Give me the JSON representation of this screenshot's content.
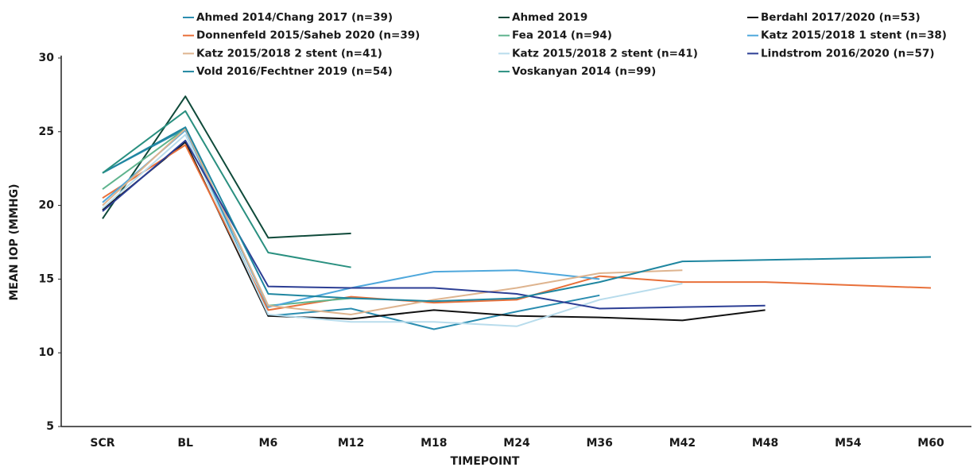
{
  "chart_data": {
    "type": "line",
    "x_label": "TIMEPOINT",
    "y_label": "MEAN IOP (MMHG)",
    "categories": [
      "SCR",
      "BL",
      "M6",
      "M12",
      "M18",
      "M24",
      "M36",
      "M42",
      "M48",
      "M54",
      "M60"
    ],
    "ylim": [
      5,
      30
    ],
    "yticks": [
      5,
      10,
      15,
      20,
      25,
      30
    ],
    "grid": false,
    "series": [
      {
        "name": "Ahmed 2014/Chang 2017 (n=39)",
        "color": "#2b8db0",
        "values": [
          22.2,
          25.2,
          12.5,
          13.0,
          11.6,
          12.8,
          13.9,
          null,
          null,
          null,
          null
        ]
      },
      {
        "name": "Ahmed 2019",
        "color": "#0f4a3a",
        "values": [
          19.1,
          27.4,
          17.8,
          18.1,
          null,
          null,
          null,
          null,
          null,
          null,
          null
        ]
      },
      {
        "name": "Berdahl 2017/2020 (n=53)",
        "color": "#111111",
        "values": [
          19.7,
          24.3,
          12.5,
          12.3,
          12.9,
          12.5,
          12.4,
          12.2,
          12.9,
          null,
          null
        ]
      },
      {
        "name": "Donnenfeld 2015/Saheb 2020 (n=39)",
        "color": "#e8703a",
        "values": [
          20.5,
          24.1,
          12.9,
          13.8,
          13.4,
          13.6,
          15.2,
          14.8,
          14.8,
          14.6,
          14.4
        ]
      },
      {
        "name": "Fea 2014 (n=94)",
        "color": "#5fb48e",
        "values": [
          21.1,
          25.2,
          13.2,
          13.7,
          null,
          null,
          null,
          null,
          null,
          null,
          null
        ]
      },
      {
        "name": "Katz 2015/2018 1 stent (n=38)",
        "color": "#4fa8dc",
        "values": [
          20.2,
          25.1,
          13.1,
          14.4,
          15.5,
          15.6,
          15.0,
          null,
          null,
          null,
          null
        ]
      },
      {
        "name": "Katz 2015/2018 2 stent (n=41)",
        "color": "#deb48f",
        "values": [
          20.0,
          25.2,
          13.2,
          12.6,
          13.6,
          14.4,
          15.4,
          15.6,
          null,
          null,
          null
        ]
      },
      {
        "name": "Katz 2015/2018 2 stent (n=41)",
        "color": "#b8dcec",
        "values": [
          19.8,
          24.8,
          12.6,
          12.1,
          12.1,
          11.8,
          13.6,
          14.7,
          null,
          null,
          null
        ]
      },
      {
        "name": "Lindstrom 2016/2020 (n=57)",
        "color": "#2c3e94",
        "values": [
          19.6,
          24.4,
          14.5,
          14.4,
          14.4,
          14.0,
          13.0,
          13.1,
          13.2,
          null,
          null
        ]
      },
      {
        "name": "Vold 2016/Fechtner 2019 (n=54)",
        "color": "#1f86a0",
        "values": [
          22.2,
          25.3,
          14.0,
          13.7,
          13.5,
          13.7,
          14.8,
          16.2,
          16.3,
          16.4,
          16.5
        ]
      },
      {
        "name": "Voskanyan 2014 (n=99)",
        "color": "#2a9080",
        "values": [
          22.2,
          26.4,
          16.8,
          15.8,
          null,
          null,
          null,
          null,
          null,
          null,
          null
        ]
      }
    ]
  }
}
